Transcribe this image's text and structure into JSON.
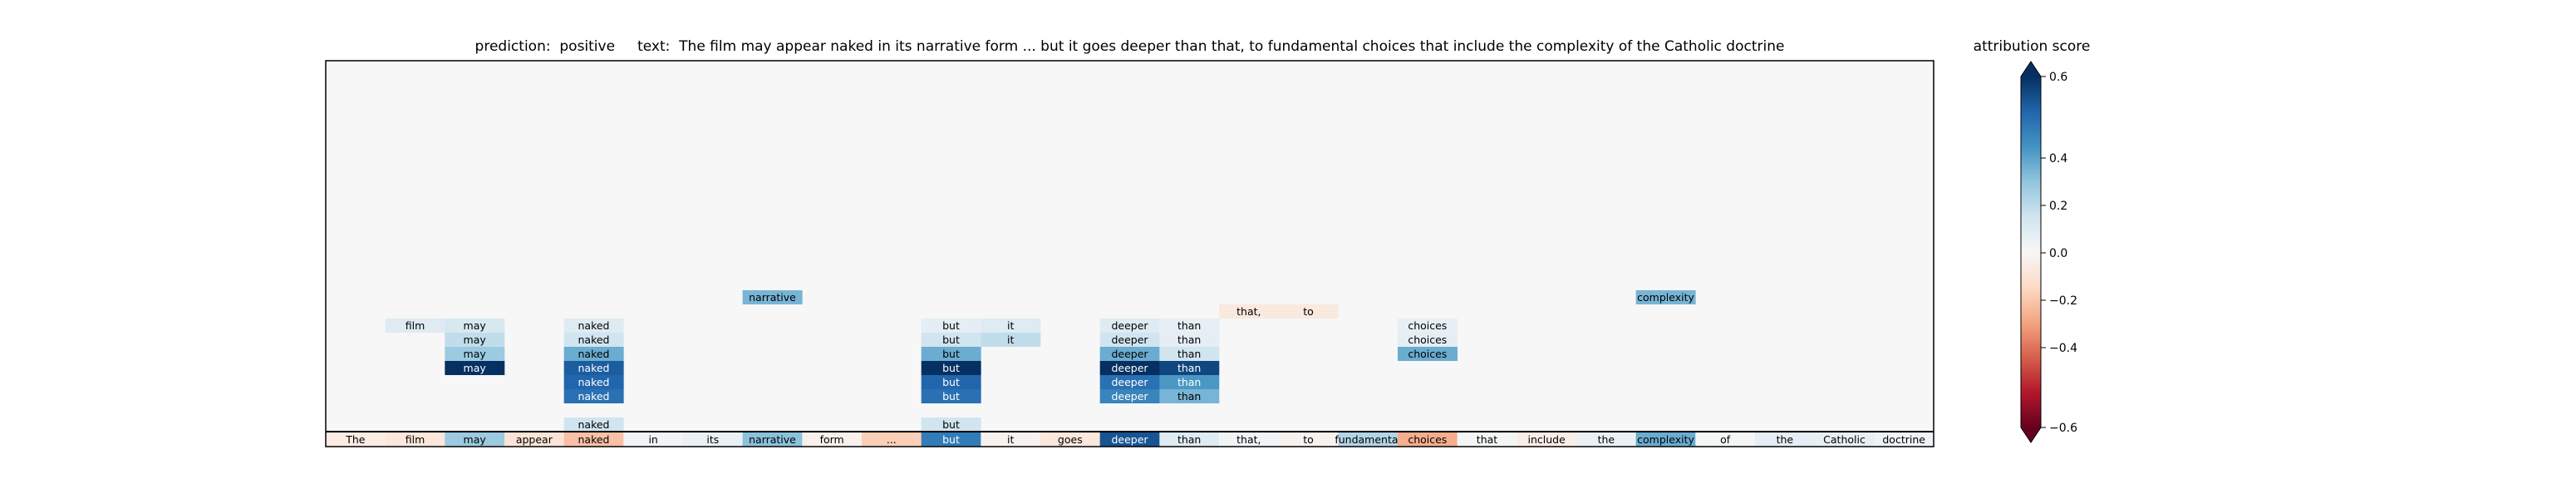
{
  "chart_data": {
    "type": "heatmap",
    "title": "prediction:  positive     text:  The film may appear naked in its narrative form ... but it goes deeper than that, to fundamental choices that include the complexity of the Catholic doctrine",
    "colorbar": {
      "label": "attribution score",
      "range": [
        -0.6,
        0.6
      ],
      "ticks": [
        "0.6",
        "0.4",
        "0.2",
        "0.0",
        "−0.2",
        "−0.4",
        "−0.6"
      ],
      "tick_values": [
        0.6,
        0.4,
        0.2,
        0.0,
        -0.2,
        -0.4,
        -0.6
      ],
      "colors": [
        "#67001f",
        "#b2182b",
        "#d6604d",
        "#f4a582",
        "#fddbc7",
        "#f7f7f7",
        "#d1e5f0",
        "#92c5de",
        "#4393c3",
        "#2166ac",
        "#053061"
      ],
      "background": "#f6f7f6"
    },
    "tokens": [
      "The",
      "film",
      "may",
      "appear",
      "naked",
      "in",
      "its",
      "narrative",
      "form",
      "...",
      "but",
      "it",
      "goes",
      "deeper",
      "than",
      "that,",
      "to",
      "fundamental",
      "choices",
      "that",
      "include",
      "the",
      "complexity",
      "of",
      "the",
      "Catholic",
      "doctrine"
    ],
    "token_scores": [
      -0.05,
      -0.07,
      0.22,
      -0.08,
      -0.18,
      0.02,
      0.04,
      0.25,
      -0.03,
      -0.15,
      0.42,
      -0.02,
      -0.07,
      0.52,
      0.08,
      0.02,
      -0.02,
      0.18,
      -0.22,
      0.01,
      -0.04,
      0.04,
      0.3,
      0.01,
      0.06,
      0.05,
      0.03
    ],
    "rows": [
      {
        "level": 0,
        "cells": [
          {
            "i": 4,
            "v": 0.12
          },
          {
            "i": 10,
            "v": 0.12
          }
        ]
      },
      {
        "level": 2,
        "cells": [
          {
            "i": 4,
            "v": 0.45
          },
          {
            "i": 10,
            "v": 0.45
          },
          {
            "i": 13,
            "v": 0.4
          },
          {
            "i": 14,
            "v": 0.28
          }
        ]
      },
      {
        "level": 3,
        "cells": [
          {
            "i": 4,
            "v": 0.48
          },
          {
            "i": 10,
            "v": 0.48
          },
          {
            "i": 13,
            "v": 0.45
          },
          {
            "i": 14,
            "v": 0.35
          }
        ]
      },
      {
        "level": 4,
        "cells": [
          {
            "i": 2,
            "v": 0.62
          },
          {
            "i": 4,
            "v": 0.5
          },
          {
            "i": 10,
            "v": 0.6
          },
          {
            "i": 13,
            "v": 0.6
          },
          {
            "i": 14,
            "v": 0.55
          }
        ]
      },
      {
        "level": 5,
        "cells": [
          {
            "i": 2,
            "v": 0.22
          },
          {
            "i": 4,
            "v": 0.3
          },
          {
            "i": 10,
            "v": 0.3
          },
          {
            "i": 13,
            "v": 0.3
          },
          {
            "i": 14,
            "v": 0.12
          },
          {
            "i": 18,
            "v": 0.3
          }
        ]
      },
      {
        "level": 6,
        "cells": [
          {
            "i": 2,
            "v": 0.15
          },
          {
            "i": 4,
            "v": 0.12
          },
          {
            "i": 10,
            "v": 0.12
          },
          {
            "i": 11,
            "v": 0.15
          },
          {
            "i": 13,
            "v": 0.12
          },
          {
            "i": 14,
            "v": 0.06
          },
          {
            "i": 18,
            "v": 0.06
          }
        ]
      },
      {
        "level": 7,
        "cells": [
          {
            "i": 1,
            "v": 0.08
          },
          {
            "i": 2,
            "v": 0.1
          },
          {
            "i": 4,
            "v": 0.08
          },
          {
            "i": 10,
            "v": 0.06
          },
          {
            "i": 11,
            "v": 0.08
          },
          {
            "i": 13,
            "v": 0.08
          },
          {
            "i": 14,
            "v": 0.05
          },
          {
            "i": 18,
            "v": 0.05
          }
        ]
      },
      {
        "level": 8,
        "cells": [
          {
            "i": 15,
            "v": -0.06
          },
          {
            "i": 16,
            "v": -0.06
          }
        ]
      },
      {
        "level": 9,
        "cells": [
          {
            "i": 7,
            "v": 0.28
          },
          {
            "i": 22,
            "v": 0.28
          }
        ]
      }
    ]
  }
}
